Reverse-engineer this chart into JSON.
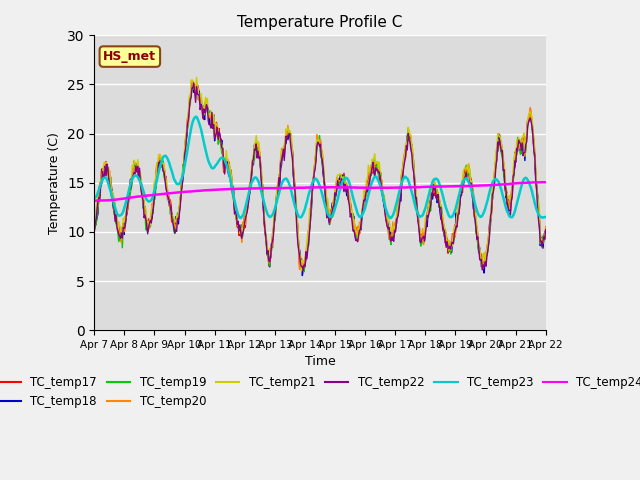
{
  "title": "Temperature Profile C",
  "xlabel": "Time",
  "ylabel": "Temperature (C)",
  "ylim": [
    0,
    30
  ],
  "yticks": [
    0,
    5,
    10,
    15,
    20,
    25,
    30
  ],
  "annotation_text": "HS_met",
  "bg_color": "#dcdcdc",
  "fig_bg": "#f0f0f0",
  "series_colors": {
    "TC_temp17": "#ff0000",
    "TC_temp18": "#0000cc",
    "TC_temp19": "#00cc00",
    "TC_temp20": "#ff8800",
    "TC_temp21": "#cccc00",
    "TC_temp22": "#880088",
    "TC_temp23": "#00cccc",
    "TC_temp24": "#ff00ff"
  },
  "x_tick_labels": [
    "Apr 7",
    "Apr 8",
    "Apr 9",
    "Apr 10",
    "Apr 11",
    "Apr 12",
    "Apr 13",
    "Apr 14",
    "Apr 15",
    "Apr 16",
    "Apr 17",
    "Apr 18",
    "Apr 19",
    "Apr 20",
    "Apr 21",
    "Apr 22"
  ],
  "n_points": 500
}
